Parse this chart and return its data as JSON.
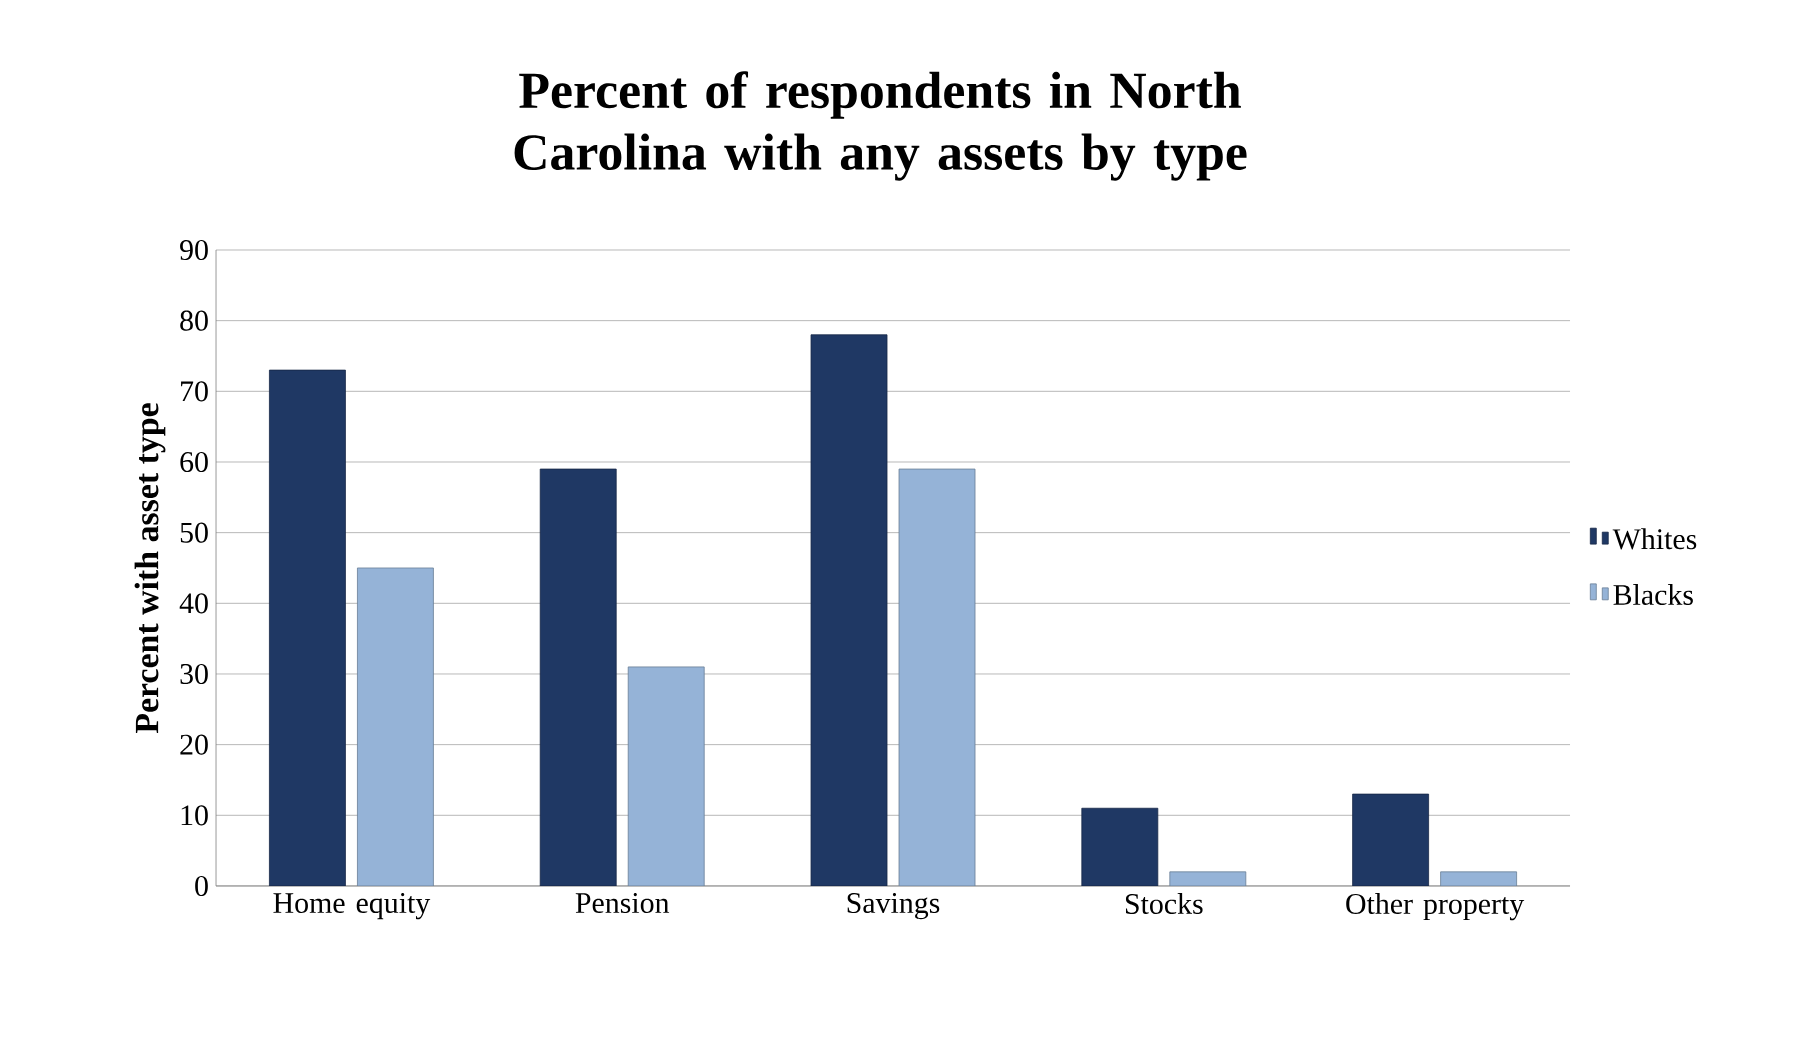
{
  "chart_data": {
    "type": "bar",
    "title": "Percent of respondents in North Carolina with any assets by type",
    "ylabel": "Percent with asset type",
    "categories": [
      "Home equity",
      "Pension",
      "Savings",
      "Stocks",
      "Other property"
    ],
    "series": [
      {
        "name": "Whites",
        "color": "#1f3864",
        "values": [
          73,
          59,
          78,
          11,
          13
        ]
      },
      {
        "name": "Blacks",
        "color": "#95b3d7",
        "values": [
          45,
          31,
          59,
          2,
          2
        ]
      }
    ],
    "ylim": [
      0,
      90
    ],
    "yticks": [
      0,
      10,
      20,
      30,
      40,
      50,
      60,
      70,
      80,
      90
    ],
    "grid": "y",
    "legend": "right"
  }
}
